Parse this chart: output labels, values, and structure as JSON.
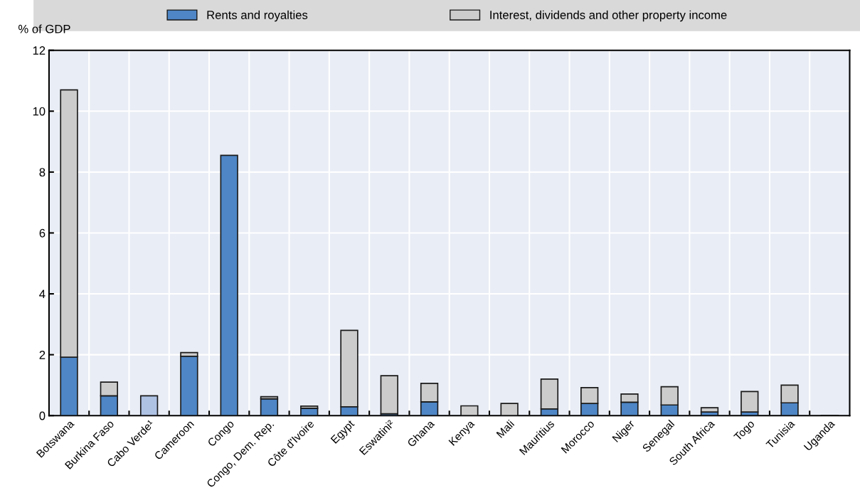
{
  "chart_data": {
    "type": "bar",
    "stacked": true,
    "ylabel": "% of GDP",
    "categories": [
      "Botswana",
      "Burkina Faso",
      "Cabo Verde¹",
      "Cameroon",
      "Congo",
      "Congo, Dem. Rep.",
      "Côte d'Ivoire",
      "Egypt",
      "Eswatini²",
      "Ghana",
      "Kenya",
      "Mali",
      "Mauritius",
      "Morocco",
      "Niger",
      "Senegal",
      "South Africa",
      "Togo",
      "Tunisia",
      "Uganda"
    ],
    "series": [
      {
        "name": "Rents and royalties",
        "color": "#4e86c6",
        "colors": [
          "#4e86c6",
          "#4e86c6",
          "#aec2e4",
          "#4e86c6",
          "#4e86c6",
          "#4e86c6",
          "#4e86c6",
          "#4e86c6",
          "#4e86c6",
          "#4e86c6",
          "#4e86c6",
          "#4e86c6",
          "#4e86c6",
          "#4e86c6",
          "#4e86c6",
          "#4e86c6",
          "#4e86c6",
          "#4e86c6",
          "#4e86c6",
          "#4e86c6"
        ],
        "values": [
          1.92,
          0.65,
          0.65,
          1.95,
          8.55,
          0.55,
          0.24,
          0.29,
          0.06,
          0.45,
          null,
          null,
          0.22,
          0.4,
          0.44,
          0.35,
          0.12,
          0.12,
          0.42,
          null
        ]
      },
      {
        "name": "Interest, dividends and other property income",
        "color": "#cccccc",
        "values": [
          8.78,
          0.45,
          null,
          0.12,
          null,
          0.07,
          0.07,
          2.51,
          1.25,
          0.61,
          0.32,
          0.4,
          0.98,
          0.52,
          0.27,
          0.6,
          0.14,
          0.67,
          0.58,
          0.01
        ]
      }
    ],
    "ylim": [
      0,
      12
    ],
    "yticks": [
      0,
      2,
      4,
      6,
      8,
      10,
      12
    ],
    "grid": true,
    "legend": "top"
  }
}
